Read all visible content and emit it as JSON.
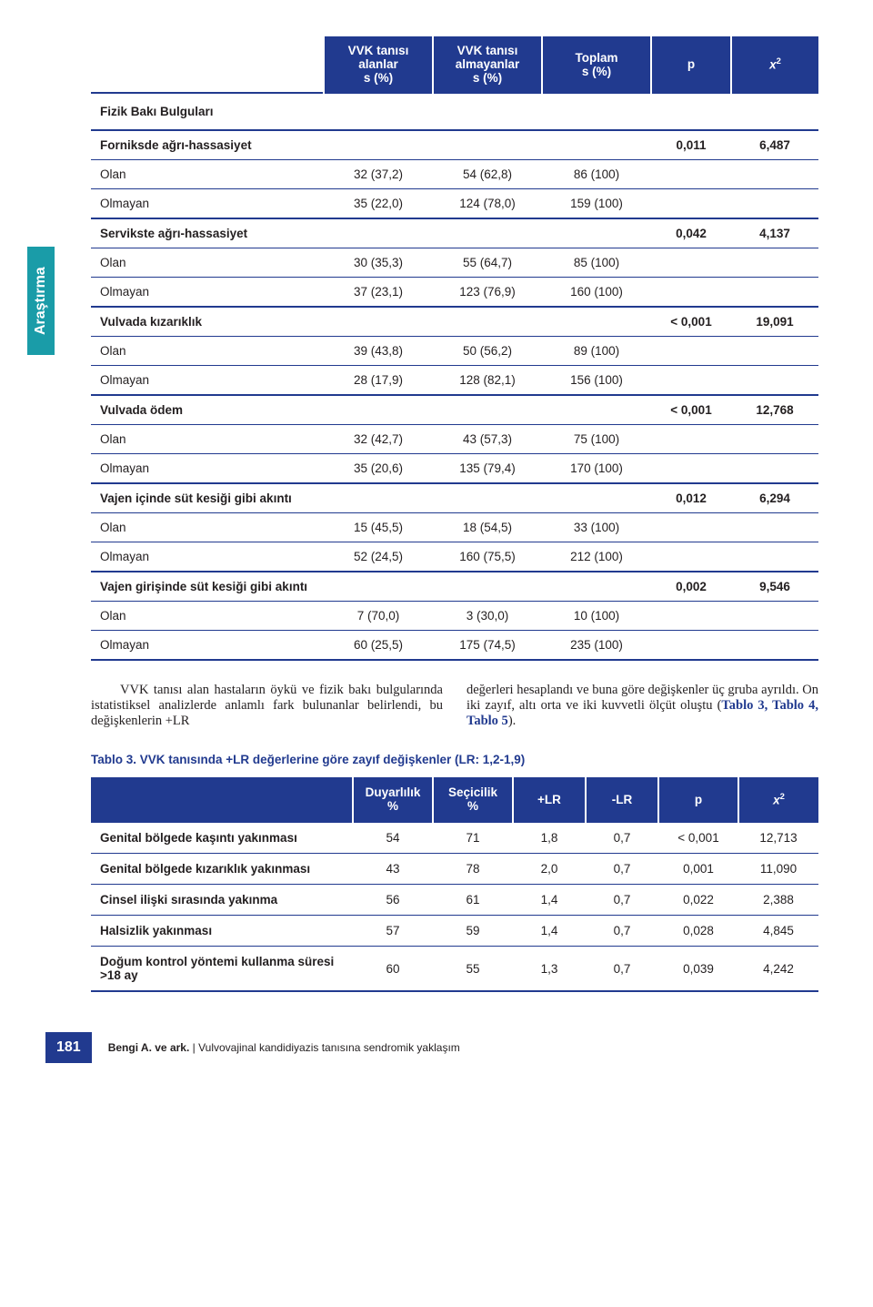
{
  "side_tab": "Araştırma",
  "table1": {
    "head": [
      "",
      "VVK tanısı\nalanlar\ns (%)",
      "VVK tanısı\nalmayanlar\ns (%)",
      "Toplam\ns (%)",
      "p",
      "x²"
    ],
    "fizik_baki": "Fizik Bakı Bulguları",
    "groups": [
      {
        "label": "Forniksde ağrı-hassasiyet",
        "p": "0,011",
        "chi": "6,487",
        "rows": [
          {
            "label": "Olan",
            "c": [
              "32 (37,2)",
              "54 (62,8)",
              "86 (100)",
              "",
              ""
            ]
          },
          {
            "label": "Olmayan",
            "c": [
              "35 (22,0)",
              "124 (78,0)",
              "159 (100)",
              "",
              ""
            ]
          }
        ]
      },
      {
        "label": "Servikste ağrı-hassasiyet",
        "p": "0,042",
        "chi": "4,137",
        "rows": [
          {
            "label": "Olan",
            "c": [
              "30 (35,3)",
              "55 (64,7)",
              "85 (100)",
              "",
              ""
            ]
          },
          {
            "label": "Olmayan",
            "c": [
              "37 (23,1)",
              "123 (76,9)",
              "160 (100)",
              "",
              ""
            ]
          }
        ]
      },
      {
        "label": "Vulvada kızarıklık",
        "p": "< 0,001",
        "chi": "19,091",
        "rows": [
          {
            "label": "Olan",
            "c": [
              "39 (43,8)",
              "50 (56,2)",
              "89 (100)",
              "",
              ""
            ]
          },
          {
            "label": "Olmayan",
            "c": [
              "28 (17,9)",
              "128 (82,1)",
              "156 (100)",
              "",
              ""
            ]
          }
        ]
      },
      {
        "label": "Vulvada ödem",
        "p": "< 0,001",
        "chi": "12,768",
        "rows": [
          {
            "label": "Olan",
            "c": [
              "32 (42,7)",
              "43 (57,3)",
              "75 (100)",
              "",
              ""
            ]
          },
          {
            "label": "Olmayan",
            "c": [
              "35 (20,6)",
              "135 (79,4)",
              "170 (100)",
              "",
              ""
            ]
          }
        ]
      },
      {
        "label": "Vajen içinde süt kesiği gibi akıntı",
        "p": "0,012",
        "chi": "6,294",
        "rows": [
          {
            "label": "Olan",
            "c": [
              "15 (45,5)",
              "18 (54,5)",
              "33 (100)",
              "",
              ""
            ]
          },
          {
            "label": "Olmayan",
            "c": [
              "52 (24,5)",
              "160 (75,5)",
              "212 (100)",
              "",
              ""
            ]
          }
        ]
      },
      {
        "label": "Vajen girişinde süt kesiği gibi akıntı",
        "p": "0,002",
        "chi": "9,546",
        "rows": [
          {
            "label": "Olan",
            "c": [
              "7 (70,0)",
              "3 (30,0)",
              "10 (100)",
              "",
              ""
            ]
          },
          {
            "label": "Olmayan",
            "c": [
              "60 (25,5)",
              "175 (74,5)",
              "235 (100)",
              "",
              ""
            ]
          }
        ]
      }
    ]
  },
  "body_left": "VVK tanısı alan hastaların öykü ve fizik bakı bulgularında istatistiksel analizlerde anlamlı fark bulunanlar belirlendi, bu değişkenlerin +LR",
  "body_right_a": "değerleri hesaplandı ve buna göre değişkenler üç gruba ayrıldı. On iki zayıf, altı orta ve iki kuvvetli ölçüt oluştu (",
  "body_right_b": "Tablo 3, Tablo 4, Tablo 5",
  "body_right_c": ").",
  "caption2": "Tablo 3. VVK tanısında +LR değerlerine göre zayıf değişkenler (LR: 1,2-1,9)",
  "table2": {
    "head": [
      "",
      "Duyarlılık\n%",
      "Seçicilik\n%",
      "+LR",
      "-LR",
      "p",
      "x²"
    ],
    "rows": [
      {
        "label": "Genital bölgede kaşıntı yakınması",
        "c": [
          "54",
          "71",
          "1,8",
          "0,7",
          "< 0,001",
          "12,713"
        ]
      },
      {
        "label": "Genital bölgede kızarıklık yakınması",
        "c": [
          "43",
          "78",
          "2,0",
          "0,7",
          "0,001",
          "11,090"
        ]
      },
      {
        "label": "Cinsel ilişki sırasında yakınma",
        "c": [
          "56",
          "61",
          "1,4",
          "0,7",
          "0,022",
          "2,388"
        ]
      },
      {
        "label": "Halsizlik yakınması",
        "c": [
          "57",
          "59",
          "1,4",
          "0,7",
          "0,028",
          "4,845"
        ]
      },
      {
        "label": "Doğum kontrol yöntemi kullanma süresi >18 ay",
        "c": [
          "60",
          "55",
          "1,3",
          "0,7",
          "0,039",
          "4,242"
        ]
      }
    ]
  },
  "page_num": "181",
  "footer_bold": "Bengi A. ve ark.",
  "footer_rest": " | Vulvovajinal kandidiyazis tanısına sendromik yaklaşım"
}
